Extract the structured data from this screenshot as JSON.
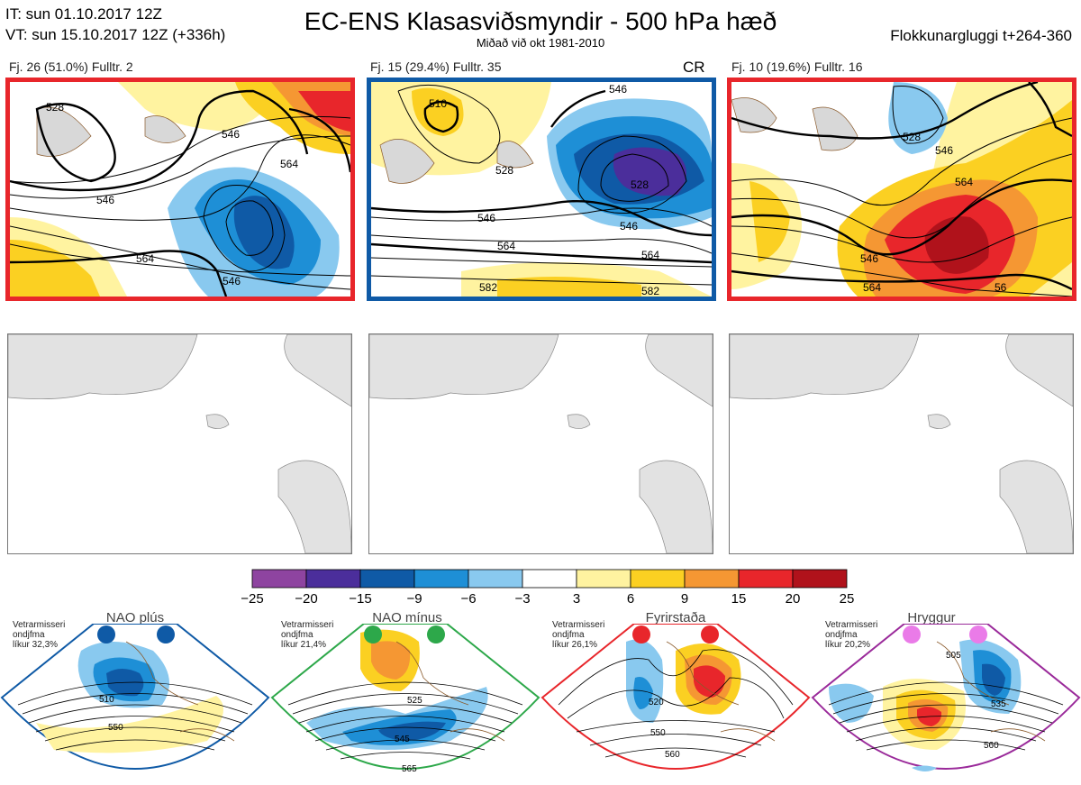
{
  "header": {
    "it_line": "IT: sun 01.10.2017 12Z",
    "vt_line": "VT: sun 15.10.2017 12Z  (+336h)",
    "title": "EC-ENS Klasasviðsmyndir - 500 hPa hæð",
    "subtitle": "Miðað við okt 1981-2010",
    "window": "Flokkunargluggi t+264-360"
  },
  "clusters": [
    {
      "label": "Fj. 26 (51.0%)   Fulltr. 2",
      "border_color": "#e8262b",
      "contours": [
        "528",
        "546",
        "564",
        "546",
        "564",
        "546"
      ]
    },
    {
      "label": "Fj. 15 (29.4%)   Fulltr. 35",
      "border_color": "#0f5aa6",
      "tag": "CR",
      "contours": [
        "510",
        "546",
        "528",
        "546",
        "528",
        "546",
        "564",
        "564",
        "582",
        "582"
      ]
    },
    {
      "label": "Fj. 10 (19.6%)   Fulltr. 16",
      "border_color": "#e8262b",
      "contours": [
        "528",
        "546",
        "564",
        "546",
        "564",
        "56"
      ]
    }
  ],
  "colorbar": {
    "ticks": [
      "−25",
      "−20",
      "−15",
      "−9",
      "−6",
      "−3",
      "3",
      "6",
      "9",
      "15",
      "20",
      "25"
    ],
    "colors": [
      "#8e44a0",
      "#4b2e9b",
      "#0f5aa6",
      "#1e8fd6",
      "#89c9ef",
      "#ffffff",
      "#fff3a0",
      "#fbd022",
      "#f59733",
      "#e8262b",
      "#b0121b"
    ]
  },
  "regimes": [
    {
      "name": "NAO plús",
      "info": [
        "Vetrarmisseri",
        "ondjfma",
        "líkur 32,3%"
      ],
      "color": "#0f5aa6",
      "contours": [
        "510",
        "550"
      ]
    },
    {
      "name": "NAO mínus",
      "info": [
        "Vetrarmisseri",
        "ondjfma",
        "líkur 21,4%"
      ],
      "color": "#2da84a",
      "contours": [
        "525",
        "545",
        "565"
      ]
    },
    {
      "name": "Fyrirstaða",
      "info": [
        "Vetrarmisseri",
        "ondjfma",
        "líkur 26,1%"
      ],
      "color": "#e8262b",
      "contours": [
        "520",
        "550",
        "560"
      ]
    },
    {
      "name": "Hryggur",
      "info": [
        "Vetrarmisseri",
        "ondjfma",
        "líkur 20,2%"
      ],
      "color": "#9a2a9a",
      "contours": [
        "505",
        "535",
        "560"
      ]
    }
  ]
}
